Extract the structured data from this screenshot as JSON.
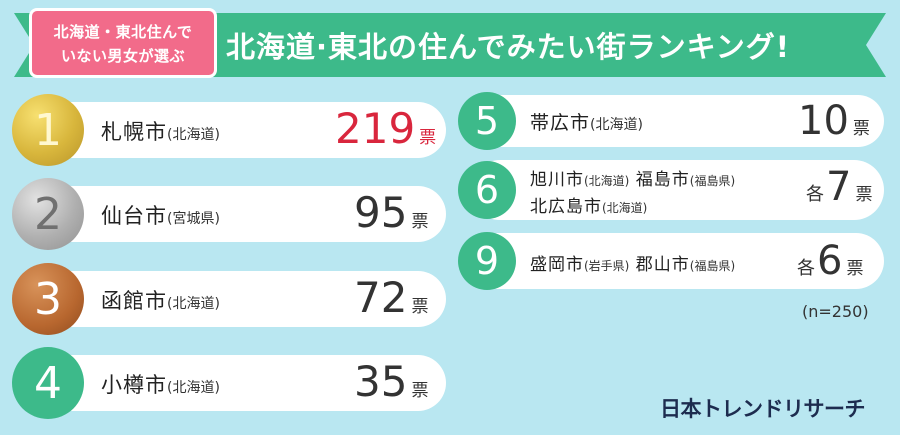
{
  "header": {
    "subtitle_line1": "北海道・東北住んで",
    "subtitle_line2": "いない男女が選ぶ",
    "title": "北海道·東北の住んでみたい街ランキング!"
  },
  "rankings": [
    {
      "rank": "1",
      "city": "札幌市",
      "pref": "(北海道)",
      "count": "219",
      "unit": "票"
    },
    {
      "rank": "2",
      "city": "仙台市",
      "pref": "(宮城県)",
      "count": "95",
      "unit": "票"
    },
    {
      "rank": "3",
      "city": "函館市",
      "pref": "(北海道)",
      "count": "72",
      "unit": "票"
    },
    {
      "rank": "4",
      "city": "小樽市",
      "pref": "(北海道)",
      "count": "35",
      "unit": "票"
    },
    {
      "rank": "5",
      "city": "帯広市",
      "pref": "(北海道)",
      "count": "10",
      "unit": "票"
    },
    {
      "rank": "6",
      "cities": [
        {
          "city": "旭川市",
          "pref": "(北海道)"
        },
        {
          "city": "福島市",
          "pref": "(福島県)"
        },
        {
          "city": "北広島市",
          "pref": "(北海道)"
        }
      ],
      "each": "各",
      "count": "7",
      "unit": "票"
    },
    {
      "rank": "9",
      "cities": [
        {
          "city": "盛岡市",
          "pref": "(岩手県)"
        },
        {
          "city": "郡山市",
          "pref": "(福島県)"
        }
      ],
      "each": "各",
      "count": "6",
      "unit": "票"
    }
  ],
  "sample_size": "(n=250)",
  "brand": "日本トレンドリサーチ",
  "colors": {
    "banner": "#3dba8a",
    "tag": "#f26b8a",
    "background": "#b9e7f1",
    "highlight": "#d9263d"
  }
}
